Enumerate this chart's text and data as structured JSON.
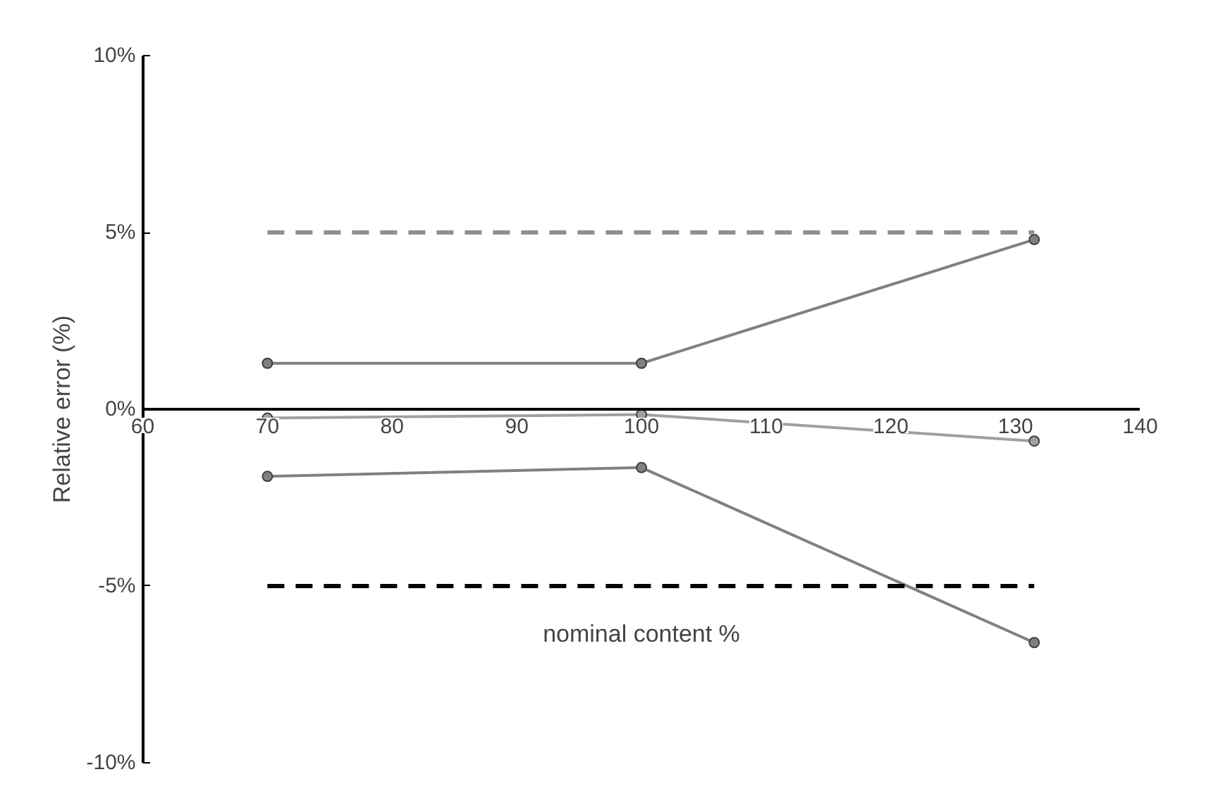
{
  "chart_data": {
    "type": "line",
    "xlabel": "nominal content %",
    "ylabel": "Relative error (%)",
    "xlim": [
      60,
      140
    ],
    "ylim": [
      -10,
      10
    ],
    "xticks": [
      60,
      70,
      80,
      90,
      100,
      110,
      120,
      130,
      140
    ],
    "yticks": [
      {
        "value": -10,
        "label": "-10%"
      },
      {
        "value": -5,
        "label": "-5%"
      },
      {
        "value": 0,
        "label": "0%"
      },
      {
        "value": 5,
        "label": "5%"
      },
      {
        "value": 10,
        "label": "10%"
      }
    ],
    "grid": false,
    "marker": "circle",
    "series": [
      {
        "color": "#808080",
        "x": [
          70,
          100,
          131.5
        ],
        "values": [
          1.3,
          1.3,
          4.8
        ]
      },
      {
        "color": "#a0a0a0",
        "x": [
          70,
          100,
          131.5
        ],
        "values": [
          -0.25,
          -0.15,
          -0.9
        ]
      },
      {
        "color": "#808080",
        "x": [
          70,
          100,
          131.5
        ],
        "values": [
          -1.9,
          -1.65,
          -6.6
        ]
      },
      {
        "color": "#909090",
        "x": [
          70,
          131.5
        ],
        "values": [
          5,
          5
        ],
        "line_style": "dashed",
        "marker": "none"
      },
      {
        "color": "#000000",
        "x": [
          70,
          131.5
        ],
        "values": [
          -5,
          -5
        ],
        "line_style": "dashed",
        "marker": "none"
      }
    ]
  }
}
